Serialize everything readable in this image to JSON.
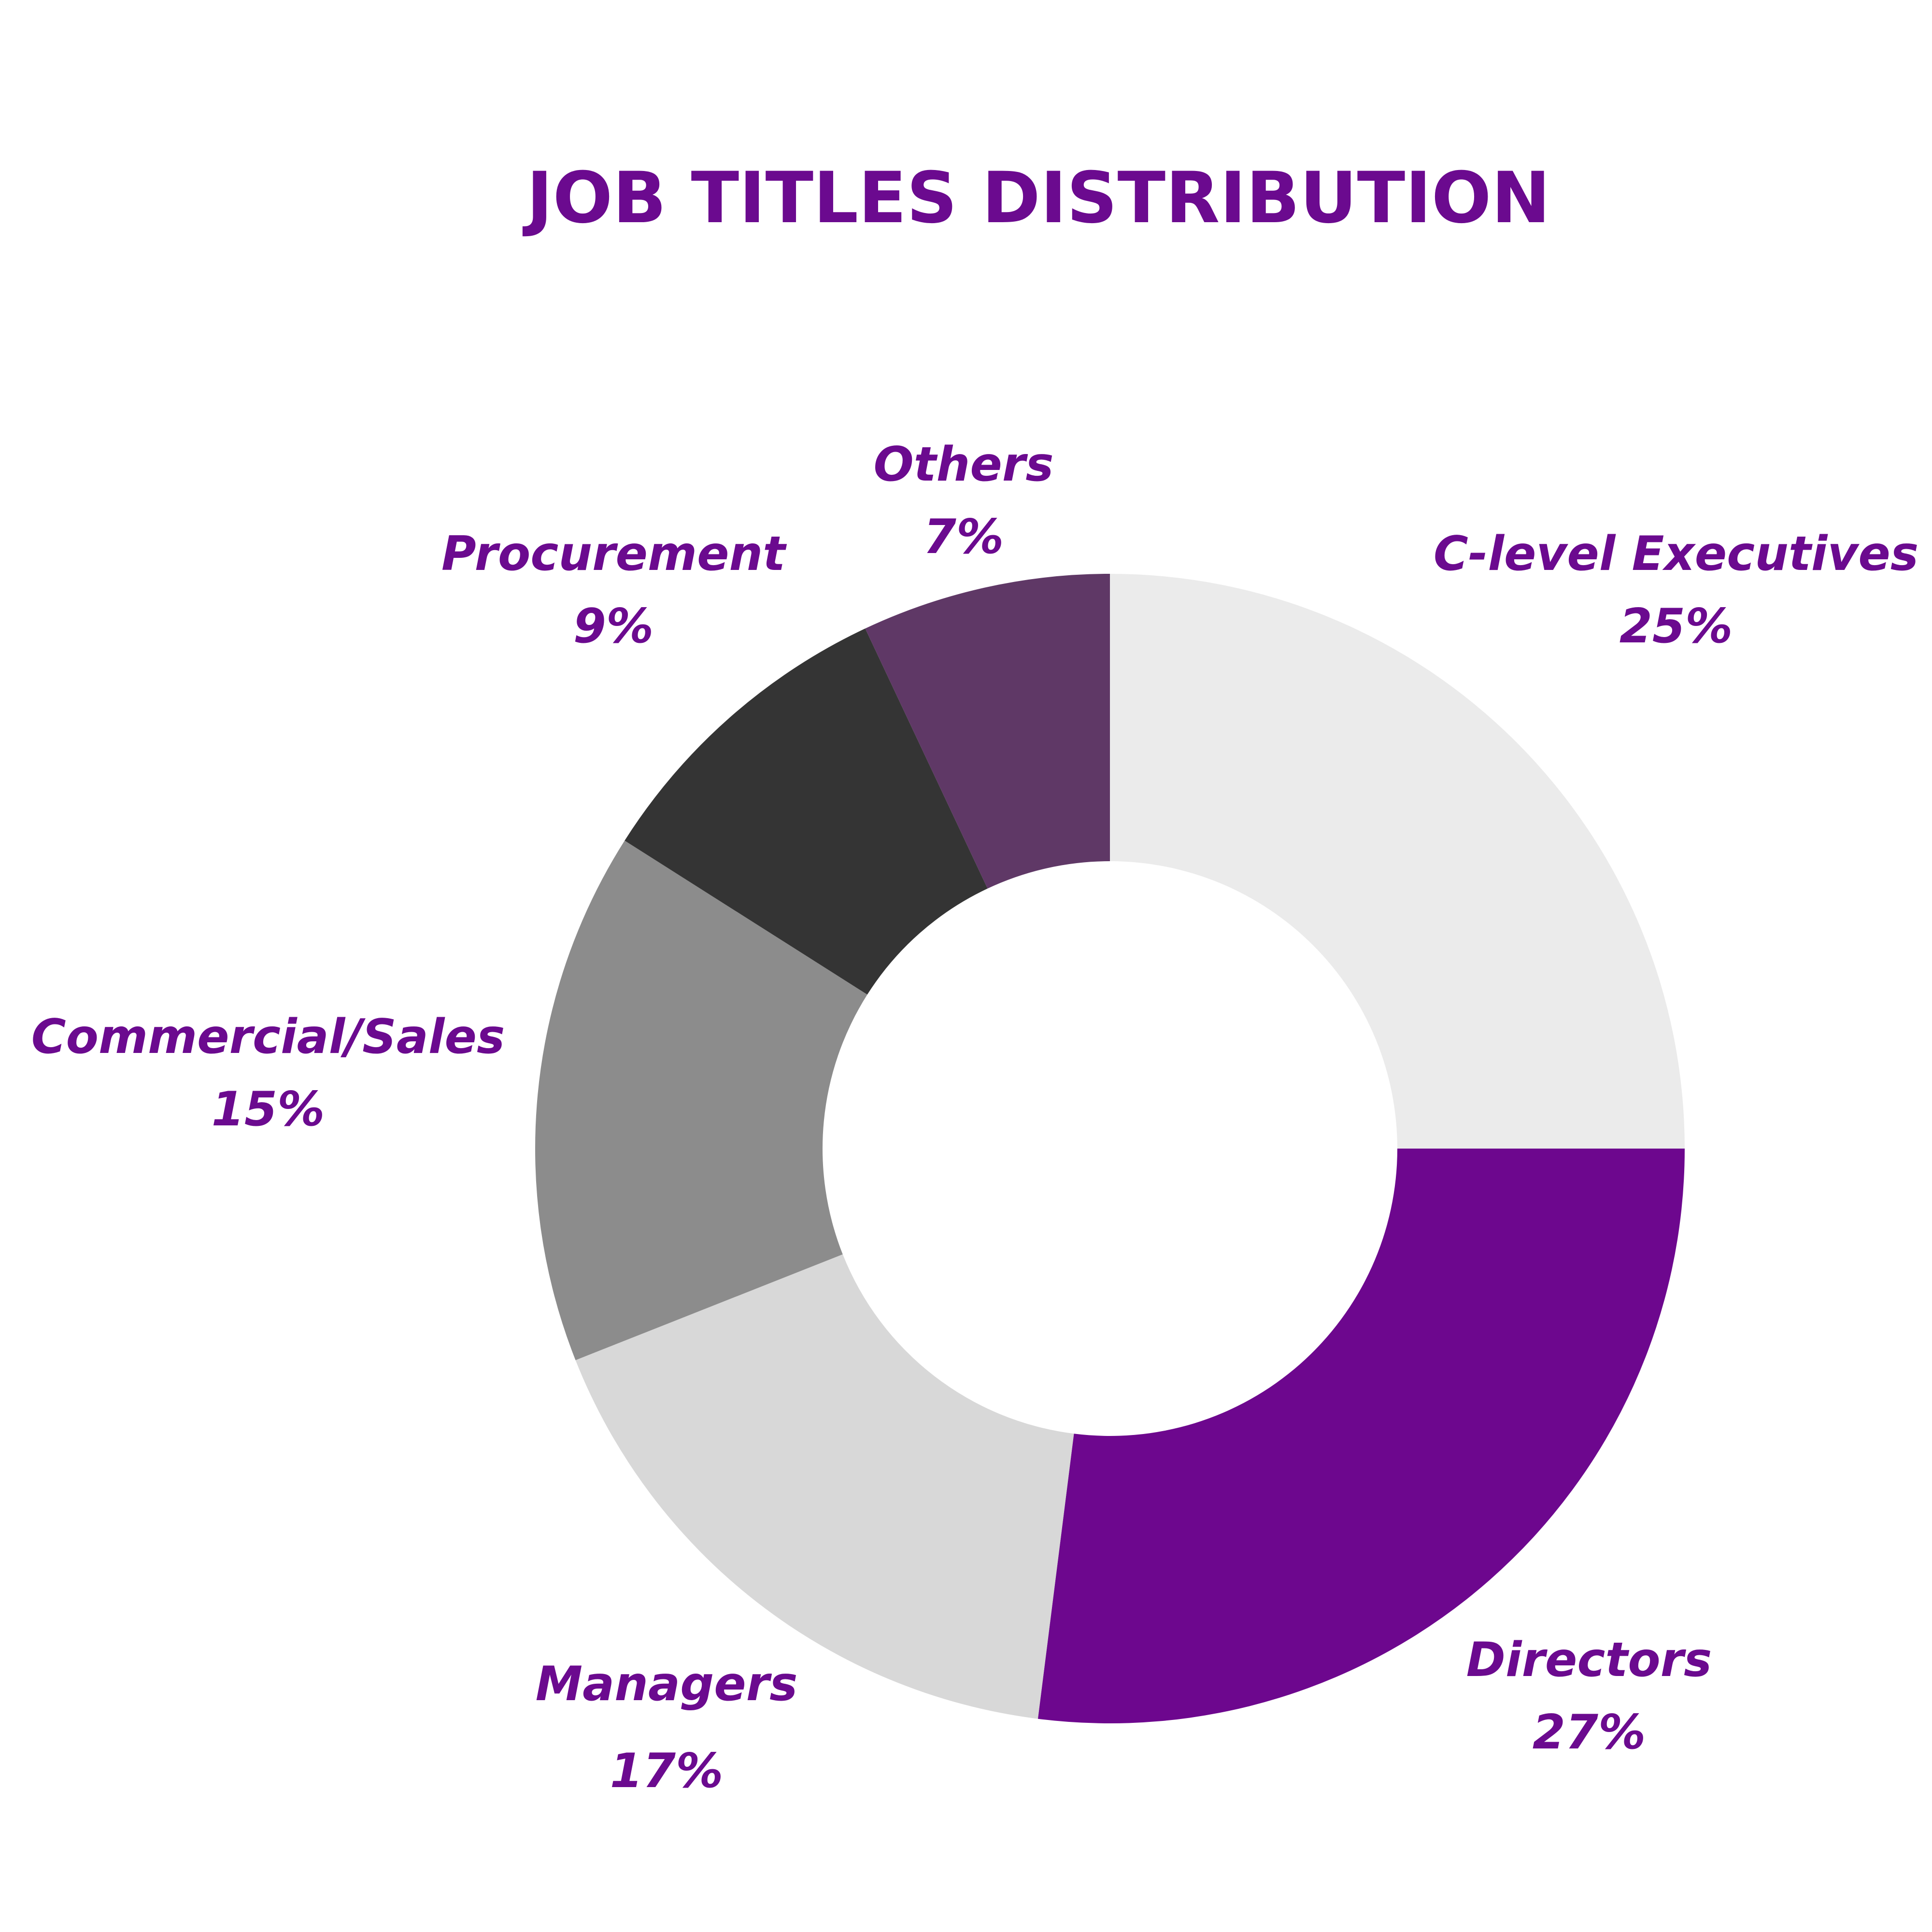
{
  "chart_data": {
    "type": "pie",
    "variant": "donut",
    "title": "JOB TITLES DISTRIBUTION",
    "categories": [
      "C-level Executives",
      "Directors",
      "Managers",
      "Commercial/Sales",
      "Procurement",
      "Others"
    ],
    "values": [
      25,
      27,
      17,
      15,
      9,
      7
    ],
    "value_labels": [
      "25%",
      "27%",
      "17%",
      "15%",
      "9%",
      "7%"
    ],
    "colors": [
      "#ebebeb",
      "#6d078e",
      "#d8d8d8",
      "#8c8c8c",
      "#343434",
      "#5f3866"
    ],
    "label_color": "#6b0a8f",
    "legend": "none"
  }
}
